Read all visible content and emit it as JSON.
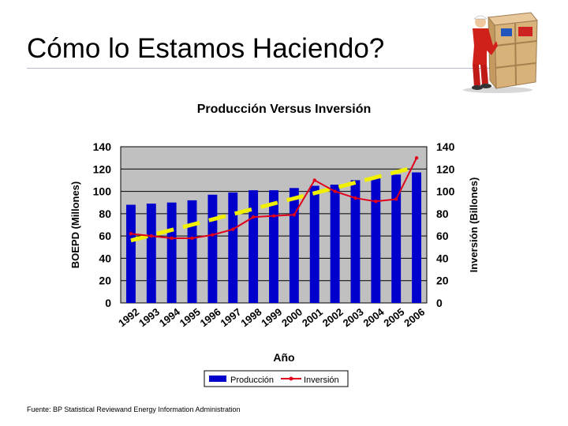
{
  "slide": {
    "title": "Cómo lo Estamos Haciendo?",
    "footer": "Fuente: BP Statistical Reviewand Energy Information Administration"
  },
  "chart_data": {
    "type": "bar",
    "title": "Producción Versus Inversión",
    "xlabel": "Año",
    "ylabel_left": "BOEPD (Millones)",
    "ylabel_right": "Inversión (Billones)",
    "categories": [
      "1992",
      "1993",
      "1994",
      "1995",
      "1996",
      "1997",
      "1998",
      "1999",
      "2000",
      "2001",
      "2002",
      "2003",
      "2004",
      "2005",
      "2006"
    ],
    "ylim": [
      0,
      140
    ],
    "yticks": [
      "0",
      "20",
      "40",
      "60",
      "80",
      "100",
      "120",
      "140"
    ],
    "y2lim": [
      0,
      140
    ],
    "y2ticks": [
      "0",
      "20",
      "40",
      "60",
      "80",
      "100",
      "120",
      "140"
    ],
    "series": [
      {
        "name": "Producción",
        "type": "bar",
        "axis": "left",
        "color": "#0000cc",
        "values": [
          88,
          89,
          90,
          92,
          97,
          99,
          101,
          101,
          103,
          105,
          106,
          110,
          113,
          115,
          117
        ]
      },
      {
        "name": "Inversión",
        "type": "line",
        "axis": "right",
        "color": "#e0001b",
        "values": [
          62,
          60,
          58,
          58,
          61,
          66,
          77,
          78,
          79,
          110,
          100,
          94,
          91,
          93,
          130
        ]
      }
    ],
    "trendline": {
      "color": "#f0f000",
      "style": "dashed",
      "start": 56,
      "end": 122
    },
    "plot_background": "#c0c0c0",
    "gridlines": "horizontal",
    "legend_position": "bottom-center"
  }
}
